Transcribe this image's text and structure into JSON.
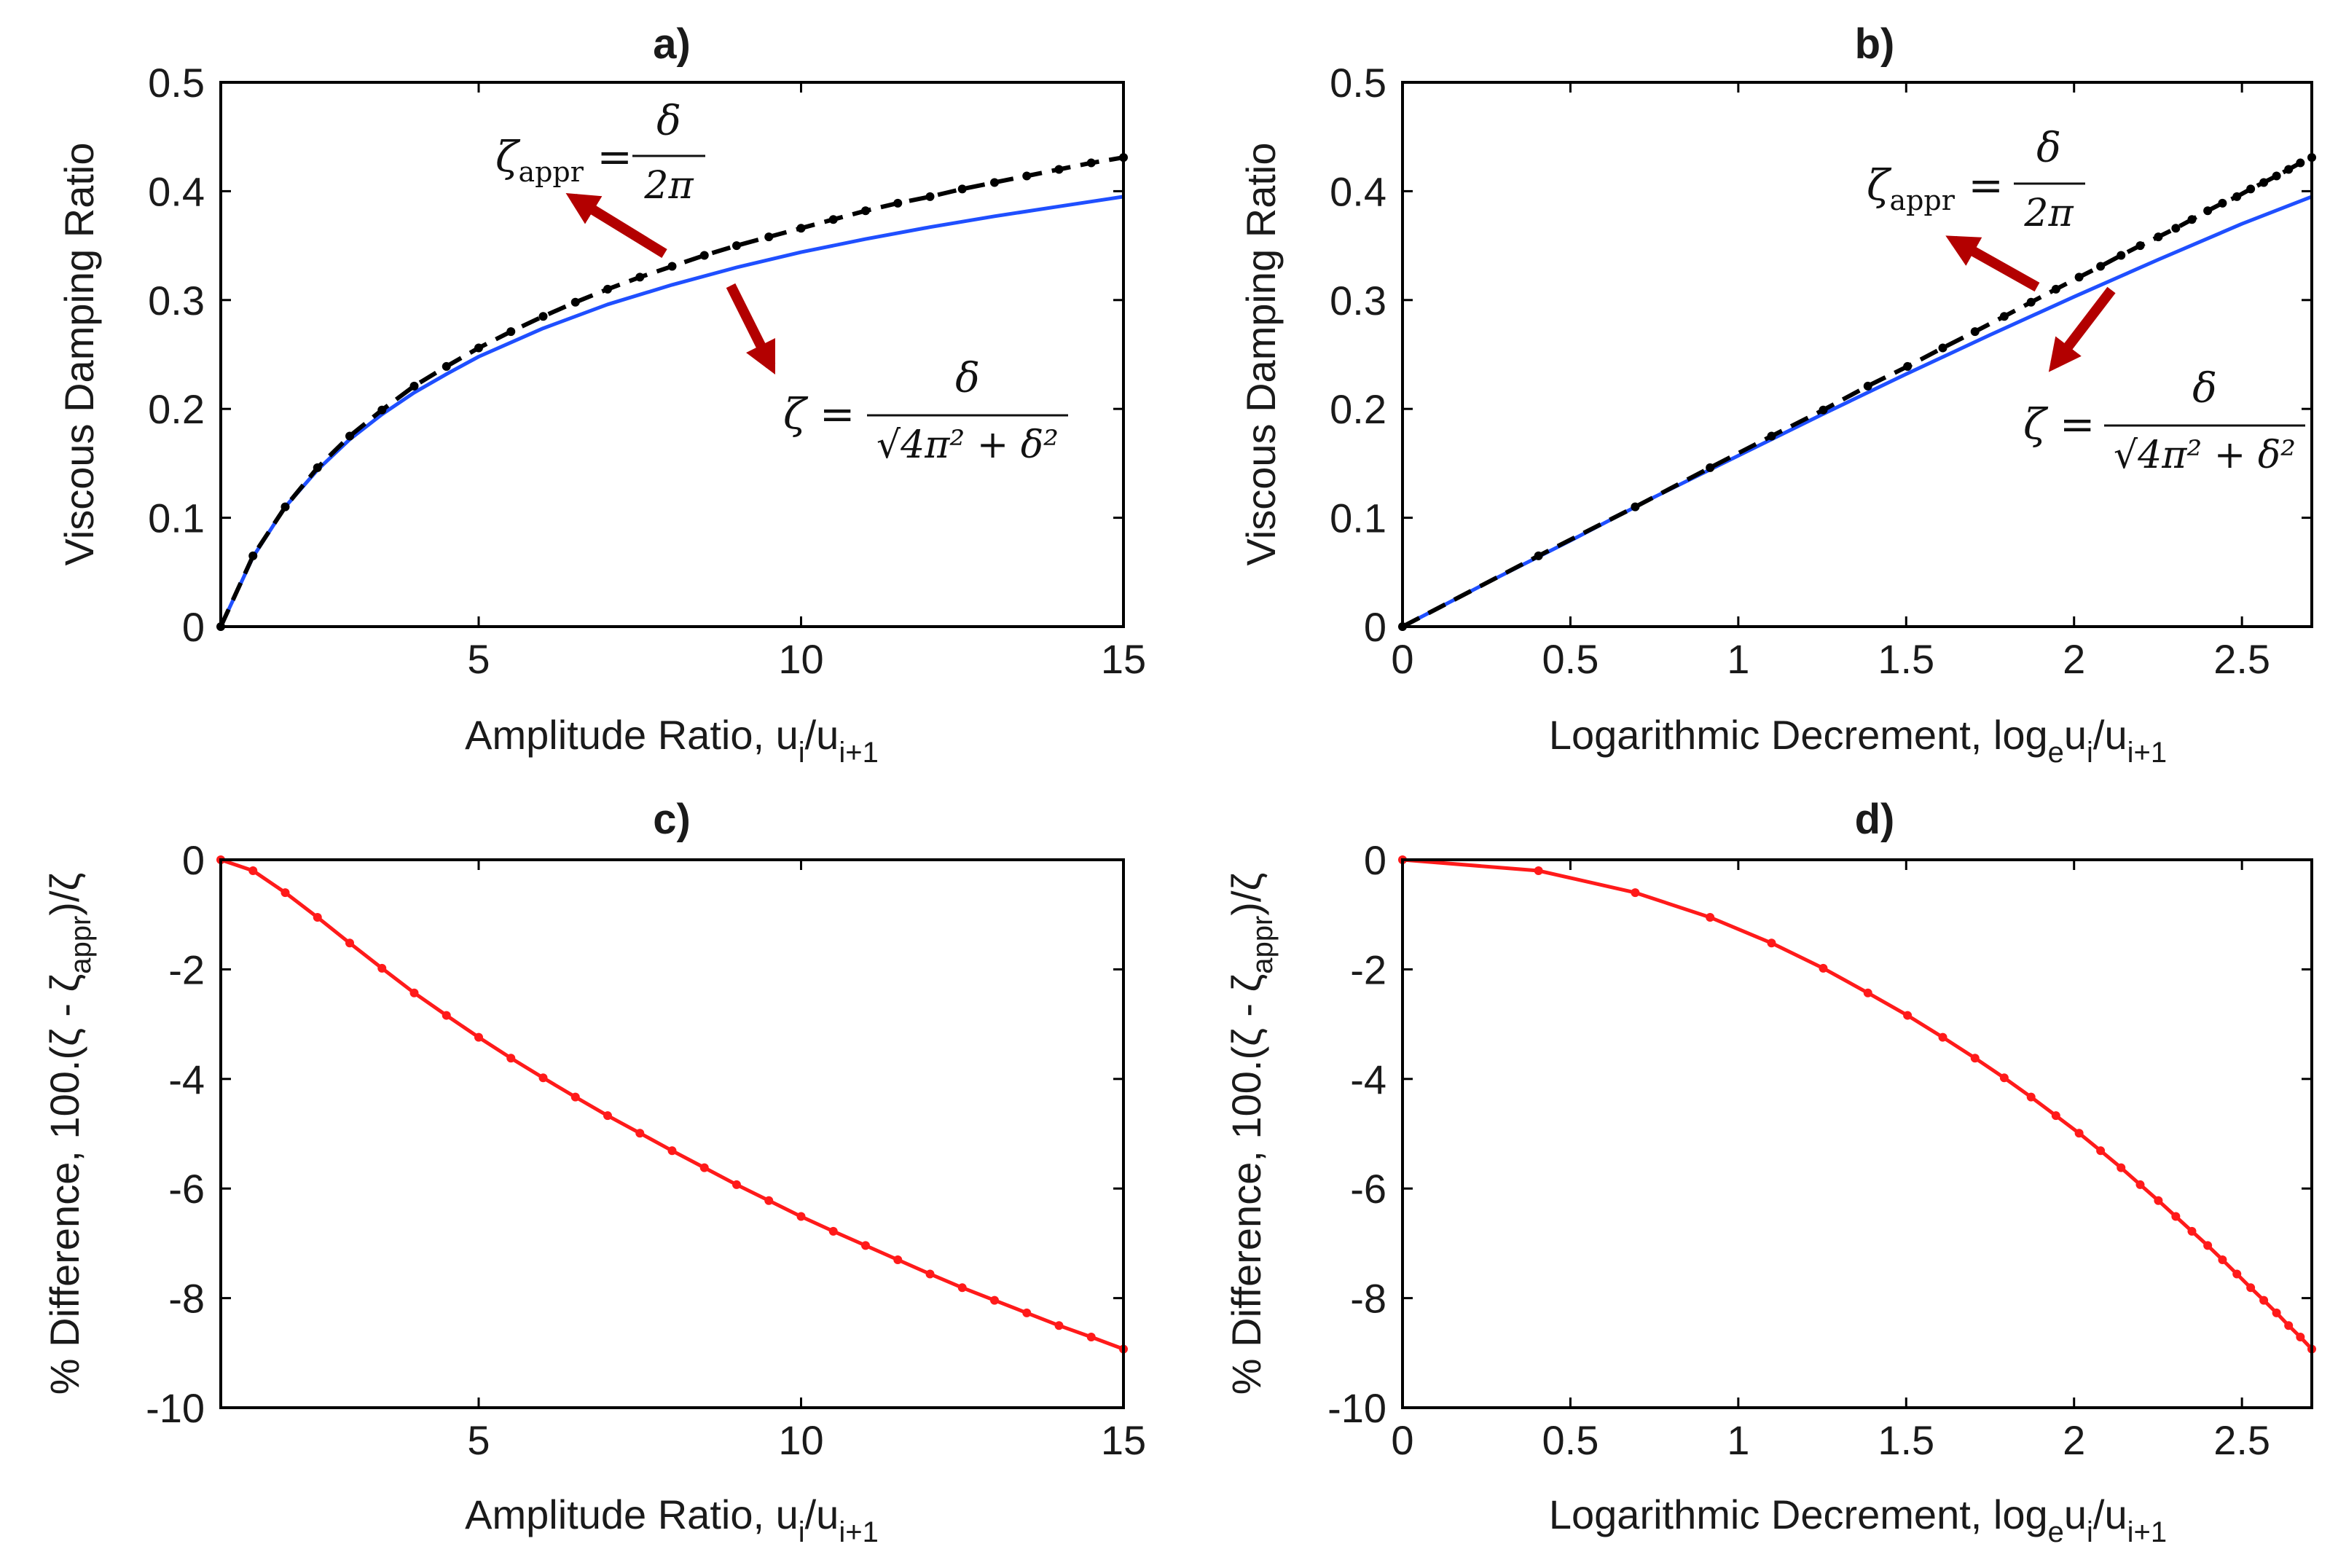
{
  "colors": {
    "exact": "#1f4fff",
    "approx": "#000000",
    "difference": "#ff1a1a",
    "arrow": "#b30000",
    "axis": "#000000"
  },
  "chart_data": [
    {
      "id": "a",
      "type": "line",
      "panel_label": "a)",
      "xlabel": {
        "main": "Amplitude Ratio, u",
        "sub1": "i",
        "mid": "/u",
        "sub2": "i+1"
      },
      "ylabel": "Viscous Damping Ratio",
      "xlim": [
        1,
        15
      ],
      "ylim": [
        0,
        0.5
      ],
      "xticks": [
        5,
        10,
        15
      ],
      "yticks": [
        0,
        0.1,
        0.2,
        0.3,
        0.4,
        0.5
      ],
      "ytick_labels": [
        "0",
        "0.1",
        "0.2",
        "0.3",
        "0.4",
        "0.5"
      ],
      "grid": false,
      "series": [
        {
          "x": [
            1,
            1.5,
            2,
            2.5,
            3,
            3.5,
            4,
            4.5,
            5,
            6,
            7,
            8,
            9,
            10,
            11,
            12,
            13,
            14,
            15
          ],
          "y": [
            0,
            0.064,
            0.11,
            0.144,
            0.172,
            0.195,
            0.215,
            0.232,
            0.248,
            0.274,
            0.296,
            0.314,
            0.33,
            0.344,
            0.356,
            0.367,
            0.377,
            0.386,
            0.395
          ]
        },
        {
          "x": [
            1,
            1.5,
            2,
            2.5,
            3,
            3.5,
            4,
            4.5,
            5,
            5.5,
            6,
            6.5,
            7,
            7.5,
            8,
            8.5,
            9,
            9.5,
            10,
            10.5,
            11,
            11.5,
            12,
            12.5,
            13,
            13.5,
            14,
            14.5,
            15
          ],
          "y": [
            0,
            0.065,
            0.11,
            0.146,
            0.175,
            0.199,
            0.221,
            0.239,
            0.256,
            0.271,
            0.285,
            0.298,
            0.31,
            0.321,
            0.331,
            0.341,
            0.35,
            0.358,
            0.366,
            0.374,
            0.382,
            0.389,
            0.395,
            0.402,
            0.408,
            0.414,
            0.42,
            0.426,
            0.431
          ]
        }
      ],
      "annotations": [
        {
          "symbol": "ζ",
          "sub": "appr",
          "num": "δ",
          "den": "2π"
        },
        {
          "symbol": "ζ",
          "sub": "",
          "num": "δ",
          "den": "√4π² + δ²"
        }
      ]
    },
    {
      "id": "b",
      "type": "line",
      "panel_label": "b)",
      "xlabel": {
        "main": "Logarithmic Decrement, log",
        "sub1": "e",
        "mid": "u",
        "sub2": "i",
        "end": "/u",
        "sub3": "i+1"
      },
      "ylabel": "Viscous Damping Ratio",
      "xlim": [
        0,
        2.708
      ],
      "ylim": [
        0,
        0.5
      ],
      "xticks": [
        0,
        0.5,
        1,
        1.5,
        2,
        2.5
      ],
      "xtick_labels": [
        "0",
        "0.5",
        "1",
        "1.5",
        "2",
        "2.5"
      ],
      "yticks": [
        0,
        0.1,
        0.2,
        0.3,
        0.4,
        0.5
      ],
      "ytick_labels": [
        "0",
        "0.1",
        "0.2",
        "0.3",
        "0.4",
        "0.5"
      ],
      "grid": false,
      "series": [
        {
          "x": [
            0,
            0.25,
            0.5,
            0.75,
            1,
            1.25,
            1.5,
            1.75,
            2,
            2.25,
            2.5,
            2.708
          ],
          "y": [
            0,
            0.04,
            0.079,
            0.119,
            0.157,
            0.195,
            0.232,
            0.268,
            0.303,
            0.337,
            0.37,
            0.395
          ]
        },
        {
          "x": [
            0,
            0.405,
            0.693,
            0.916,
            1.099,
            1.253,
            1.386,
            1.504,
            1.609,
            1.705,
            1.792,
            1.872,
            1.946,
            2.015,
            2.079,
            2.14,
            2.197,
            2.251,
            2.303,
            2.351,
            2.398,
            2.442,
            2.485,
            2.526,
            2.565,
            2.603,
            2.639,
            2.674,
            2.708
          ],
          "y": [
            0,
            0.065,
            0.11,
            0.146,
            0.175,
            0.199,
            0.221,
            0.239,
            0.256,
            0.271,
            0.285,
            0.298,
            0.31,
            0.321,
            0.331,
            0.341,
            0.35,
            0.358,
            0.366,
            0.374,
            0.382,
            0.389,
            0.395,
            0.402,
            0.408,
            0.414,
            0.42,
            0.426,
            0.431
          ]
        }
      ],
      "annotations": [
        {
          "symbol": "ζ",
          "sub": "appr",
          "num": "δ",
          "den": "2π"
        },
        {
          "symbol": "ζ",
          "sub": "",
          "num": "δ",
          "den": "√4π² + δ²"
        }
      ]
    },
    {
      "id": "c",
      "type": "line",
      "panel_label": "c)",
      "xlabel": {
        "main": "Amplitude Ratio, u",
        "sub1": "i",
        "mid": "/u",
        "sub2": "i+1"
      },
      "ylabel": {
        "main": "% Difference, 100.(ζ - ζ",
        "sub": "appr",
        "end": ")/ζ"
      },
      "xlim": [
        1,
        15
      ],
      "ylim": [
        -10,
        0
      ],
      "xticks": [
        5,
        10,
        15
      ],
      "yticks": [
        -10,
        -8,
        -6,
        -4,
        -2,
        0
      ],
      "ytick_labels": [
        "-10",
        "-8",
        "-6",
        "-4",
        "-2",
        "0"
      ],
      "grid": false,
      "series": [
        {
          "x": [
            1,
            1.5,
            2,
            2.5,
            3,
            3.5,
            4,
            4.5,
            5,
            5.5,
            6,
            6.5,
            7,
            7.5,
            8,
            8.5,
            9,
            9.5,
            10,
            10.5,
            11,
            11.5,
            12,
            12.5,
            13,
            13.5,
            14,
            14.5,
            15
          ],
          "y": [
            0,
            -0.2,
            -0.6,
            -1.05,
            -1.52,
            -1.98,
            -2.43,
            -2.84,
            -3.24,
            -3.62,
            -3.98,
            -4.33,
            -4.67,
            -4.99,
            -5.31,
            -5.62,
            -5.93,
            -6.22,
            -6.51,
            -6.78,
            -7.04,
            -7.3,
            -7.56,
            -7.81,
            -8.04,
            -8.27,
            -8.5,
            -8.71,
            -8.93
          ]
        }
      ]
    },
    {
      "id": "d",
      "type": "line",
      "panel_label": "d)",
      "xlabel": {
        "main": "Logarithmic Decrement, log",
        "sub1": "e",
        "mid": "u",
        "sub2": "i",
        "end": "/u",
        "sub3": "i+1"
      },
      "ylabel": {
        "main": "% Difference, 100.(ζ - ζ",
        "sub": "appr",
        "end": ")/ζ"
      },
      "xlim": [
        0,
        2.708
      ],
      "ylim": [
        -10,
        0
      ],
      "xticks": [
        0,
        0.5,
        1,
        1.5,
        2,
        2.5
      ],
      "xtick_labels": [
        "0",
        "0.5",
        "1",
        "1.5",
        "2",
        "2.5"
      ],
      "yticks": [
        -10,
        -8,
        -6,
        -4,
        -2,
        0
      ],
      "ytick_labels": [
        "-10",
        "-8",
        "-6",
        "-4",
        "-2",
        "0"
      ],
      "grid": false,
      "series": [
        {
          "x": [
            0,
            0.405,
            0.693,
            0.916,
            1.099,
            1.253,
            1.386,
            1.504,
            1.609,
            1.705,
            1.792,
            1.872,
            1.946,
            2.015,
            2.079,
            2.14,
            2.197,
            2.251,
            2.303,
            2.351,
            2.398,
            2.442,
            2.485,
            2.526,
            2.565,
            2.603,
            2.639,
            2.674,
            2.708
          ],
          "y": [
            0,
            -0.2,
            -0.6,
            -1.05,
            -1.52,
            -1.98,
            -2.43,
            -2.84,
            -3.24,
            -3.62,
            -3.98,
            -4.33,
            -4.67,
            -4.99,
            -5.31,
            -5.62,
            -5.93,
            -6.22,
            -6.51,
            -6.78,
            -7.04,
            -7.3,
            -7.56,
            -7.81,
            -8.04,
            -8.27,
            -8.5,
            -8.71,
            -8.93
          ]
        }
      ]
    }
  ]
}
